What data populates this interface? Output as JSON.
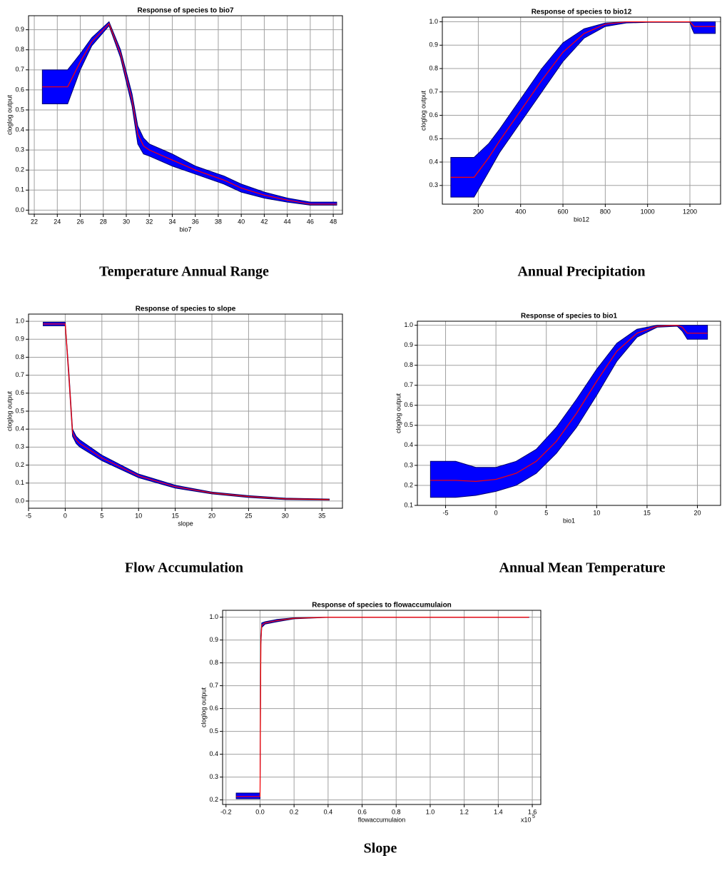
{
  "chart_data": [
    {
      "type": "line",
      "title": "Response of species to bio7",
      "x_label": "bio7",
      "y_label": "cloglog output",
      "caption": "Temperature Annual Range",
      "x": [
        22.7,
        24.9,
        26,
        27,
        28.5,
        29.5,
        30.5,
        31,
        31.5,
        32,
        34,
        36,
        38,
        38.5,
        40,
        42,
        44,
        46,
        48.3
      ],
      "values": [
        0.615,
        0.615,
        0.74,
        0.84,
        0.93,
        0.78,
        0.55,
        0.38,
        0.32,
        0.3,
        0.25,
        0.2,
        0.16,
        0.15,
        0.11,
        0.075,
        0.05,
        0.03,
        0.03
      ],
      "band": {
        "lower": [
          0.53,
          0.53,
          0.7,
          0.82,
          0.92,
          0.76,
          0.52,
          0.33,
          0.28,
          0.27,
          0.22,
          0.18,
          0.14,
          0.13,
          0.09,
          0.06,
          0.04,
          0.025,
          0.025
        ],
        "upper": [
          0.7,
          0.7,
          0.78,
          0.86,
          0.94,
          0.8,
          0.58,
          0.42,
          0.36,
          0.33,
          0.28,
          0.22,
          0.18,
          0.17,
          0.13,
          0.09,
          0.06,
          0.04,
          0.04
        ]
      },
      "color": "#ff0000",
      "band_color": "#0000ff",
      "grid": true,
      "xlim": [
        21.5,
        48.8
      ],
      "xticks": [
        22,
        24,
        26,
        28,
        30,
        32,
        34,
        36,
        38,
        40,
        42,
        44,
        46,
        48
      ],
      "ylim": [
        -0.02,
        0.97
      ],
      "yticks": [
        {
          "value": 0,
          "label": "0.0"
        },
        0.1,
        0.2,
        0.3,
        0.4,
        0.5,
        0.6,
        0.7,
        0.8,
        0.9
      ]
    },
    {
      "type": "line",
      "title": "Response of species to bio12",
      "x_label": "bio12",
      "y_label": "cloglog output",
      "caption": "Annual Precipitation",
      "x": [
        70,
        180,
        250,
        300,
        400,
        500,
        600,
        700,
        800,
        900,
        1000,
        1200,
        1210,
        1220,
        1320
      ],
      "values": [
        0.335,
        0.335,
        0.42,
        0.49,
        0.62,
        0.75,
        0.87,
        0.95,
        0.99,
        1.0,
        1.0,
        1.0,
        0.99,
        0.98,
        0.98
      ],
      "band": {
        "lower": [
          0.25,
          0.25,
          0.36,
          0.44,
          0.57,
          0.7,
          0.83,
          0.93,
          0.98,
          0.995,
          0.998,
          0.998,
          0.97,
          0.95,
          0.95
        ],
        "upper": [
          0.42,
          0.42,
          0.48,
          0.54,
          0.67,
          0.8,
          0.91,
          0.97,
          0.995,
          1.0,
          1.0,
          1.0,
          1.0,
          1.0,
          1.0
        ]
      },
      "color": "#ff0000",
      "band_color": "#0000ff",
      "grid": true,
      "xlim": [
        30,
        1345
      ],
      "xticks": [
        200,
        400,
        600,
        800,
        1000,
        1200
      ],
      "ylim": [
        0.22,
        1.02
      ],
      "yticks": [
        0.3,
        0.4,
        0.5,
        0.6,
        0.7,
        0.8,
        0.9,
        {
          "value": 1,
          "label": "1.0"
        }
      ]
    },
    {
      "type": "line",
      "title": "Response of species to slope",
      "x_label": "slope",
      "y_label": "cloglog output",
      "caption": "Flow Accumulation",
      "x": [
        -3,
        0,
        0.5,
        1,
        1.5,
        2,
        5,
        10,
        15,
        20,
        25,
        30,
        36
      ],
      "values": [
        0.985,
        0.985,
        0.7,
        0.38,
        0.34,
        0.32,
        0.24,
        0.14,
        0.08,
        0.045,
        0.025,
        0.012,
        0.008
      ],
      "band": {
        "lower": [
          0.975,
          0.975,
          0.68,
          0.36,
          0.32,
          0.3,
          0.225,
          0.13,
          0.072,
          0.04,
          0.02,
          0.008,
          0.005
        ],
        "upper": [
          0.995,
          0.995,
          0.72,
          0.4,
          0.36,
          0.34,
          0.255,
          0.15,
          0.088,
          0.05,
          0.03,
          0.016,
          0.011
        ]
      },
      "color": "#ff0000",
      "band_color": "#0000ff",
      "grid": true,
      "xlim": [
        -5,
        37.8
      ],
      "xticks": [
        -5,
        0,
        5,
        10,
        15,
        20,
        25,
        30,
        35
      ],
      "ylim": [
        -0.04,
        1.04
      ],
      "yticks": [
        {
          "value": 0,
          "label": "0.0"
        },
        0.1,
        0.2,
        0.3,
        0.4,
        0.5,
        0.6,
        0.7,
        0.8,
        0.9,
        {
          "value": 1,
          "label": "1.0"
        }
      ]
    },
    {
      "type": "line",
      "title": "Response of species to bio1",
      "x_label": "bio1",
      "y_label": "cloglog output",
      "caption": "Annual Mean Temperature",
      "x": [
        -6.5,
        -4,
        -2,
        0,
        2,
        4,
        6,
        8,
        10,
        12,
        14,
        16,
        18,
        18.5,
        19,
        21
      ],
      "values": [
        0.225,
        0.225,
        0.22,
        0.23,
        0.26,
        0.32,
        0.42,
        0.56,
        0.72,
        0.87,
        0.96,
        0.995,
        1.0,
        0.99,
        0.96,
        0.96
      ],
      "band": {
        "lower": [
          0.14,
          0.14,
          0.15,
          0.17,
          0.2,
          0.26,
          0.36,
          0.49,
          0.65,
          0.82,
          0.94,
          0.99,
          0.995,
          0.97,
          0.93,
          0.93
        ],
        "upper": [
          0.32,
          0.32,
          0.29,
          0.29,
          0.32,
          0.38,
          0.49,
          0.63,
          0.78,
          0.91,
          0.98,
          1.0,
          1.0,
          1.0,
          1.0,
          1.0
        ]
      },
      "color": "#ff0000",
      "band_color": "#0000ff",
      "grid": true,
      "xlim": [
        -7.8,
        22.3
      ],
      "xticks": [
        -5,
        0,
        5,
        10,
        15,
        20
      ],
      "ylim": [
        0.1,
        1.02
      ],
      "yticks": [
        0.1,
        0.2,
        0.3,
        0.4,
        0.5,
        0.6,
        0.7,
        0.8,
        0.9,
        {
          "value": 1,
          "label": "1.0"
        }
      ]
    },
    {
      "type": "line",
      "title": "Response of species to flowaccumulaion",
      "x_label": "flowaccumulaion",
      "x_multiplier": "x10",
      "x_multiplier_exponent": "5",
      "y_label": "cloglog output",
      "caption": "Slope",
      "x": [
        -0.14,
        0,
        0.005,
        0.01,
        0.03,
        0.1,
        0.2,
        0.4,
        1.0,
        1.58
      ],
      "values": [
        0.215,
        0.215,
        0.9,
        0.965,
        0.975,
        0.985,
        0.995,
        1.0,
        1.0,
        1.0
      ],
      "band": {
        "lower": [
          0.205,
          0.205,
          0.88,
          0.955,
          0.97,
          0.98,
          0.993,
          0.999,
          0.999,
          0.999
        ],
        "upper": [
          0.23,
          0.23,
          0.92,
          0.975,
          0.98,
          0.99,
          0.997,
          1.0,
          1.0,
          1.0
        ]
      },
      "color": "#ff0000",
      "band_color": "#0000ff",
      "grid": true,
      "xlim": [
        -0.22,
        1.65
      ],
      "xticks": [
        -0.2,
        {
          "value": 0,
          "label": "0.0"
        },
        0.2,
        0.4,
        0.6,
        0.8,
        {
          "value": 1,
          "label": "1.0"
        },
        1.2,
        1.4,
        1.6
      ],
      "ylim": [
        0.18,
        1.03
      ],
      "yticks": [
        0.2,
        0.3,
        0.4,
        0.5,
        0.6,
        0.7,
        0.8,
        0.9,
        {
          "value": 1,
          "label": "1.0"
        }
      ]
    }
  ]
}
